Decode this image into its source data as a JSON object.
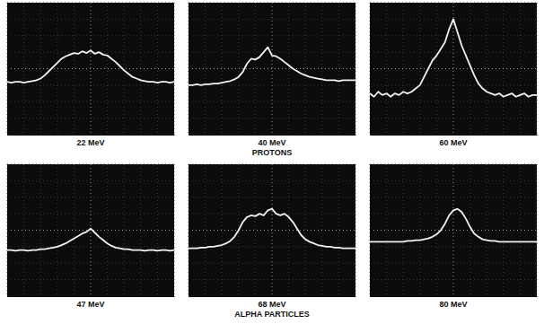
{
  "chart_data": [
    {
      "type": "line",
      "title": "22 MeV",
      "grid": true,
      "tick_labels": false,
      "color": "#f2f2f2",
      "xlim": [
        0,
        10
      ],
      "ylim": [
        0,
        8
      ],
      "xticks": [
        0,
        1,
        2,
        3,
        4,
        5,
        6,
        7,
        8,
        9,
        10
      ],
      "yticks": [
        0,
        1,
        2,
        3,
        4,
        5,
        6,
        7,
        8
      ],
      "x": [
        0,
        0.25,
        0.5,
        0.75,
        1,
        1.25,
        1.5,
        1.75,
        2,
        2.25,
        2.5,
        2.75,
        3,
        3.25,
        3.5,
        3.75,
        4,
        4.25,
        4.5,
        4.75,
        5,
        5.25,
        5.5,
        5.75,
        6,
        6.25,
        6.5,
        6.75,
        7,
        7.25,
        7.5,
        7.75,
        8,
        8.25,
        8.5,
        8.75,
        9,
        9.25,
        9.5,
        9.75,
        10
      ],
      "values": [
        3.2,
        3.15,
        3.2,
        3.2,
        3.15,
        3.2,
        3.25,
        3.3,
        3.4,
        3.6,
        3.85,
        4.1,
        4.35,
        4.6,
        4.75,
        4.85,
        4.95,
        4.9,
        5.05,
        4.95,
        5.1,
        4.9,
        5.0,
        4.85,
        4.8,
        4.6,
        4.4,
        4.15,
        3.9,
        3.7,
        3.5,
        3.4,
        3.3,
        3.25,
        3.2,
        3.2,
        3.15,
        3.2,
        3.2,
        3.15,
        3.2
      ]
    },
    {
      "type": "line",
      "title": "40 MeV",
      "subtitle": "PROTONS",
      "grid": true,
      "tick_labels": false,
      "color": "#f2f2f2",
      "xlim": [
        0,
        10
      ],
      "ylim": [
        0,
        8
      ],
      "xticks": [
        0,
        1,
        2,
        3,
        4,
        5,
        6,
        7,
        8,
        9,
        10
      ],
      "yticks": [
        0,
        1,
        2,
        3,
        4,
        5,
        6,
        7,
        8
      ],
      "x": [
        0,
        0.25,
        0.5,
        0.75,
        1,
        1.25,
        1.5,
        1.75,
        2,
        2.25,
        2.5,
        2.75,
        3,
        3.25,
        3.5,
        3.75,
        4,
        4.25,
        4.5,
        4.75,
        5,
        5.25,
        5.5,
        5.75,
        6,
        6.25,
        6.5,
        6.75,
        7,
        7.25,
        7.5,
        7.75,
        8,
        8.25,
        8.5,
        8.75,
        9,
        9.25,
        9.5,
        9.75,
        10
      ],
      "values": [
        3.0,
        3.0,
        3.05,
        3.0,
        3.05,
        3.05,
        3.1,
        3.1,
        3.15,
        3.2,
        3.25,
        3.35,
        3.5,
        3.8,
        4.3,
        4.6,
        4.55,
        4.7,
        5.0,
        5.3,
        4.8,
        4.75,
        4.6,
        4.4,
        4.2,
        4.0,
        3.85,
        3.7,
        3.6,
        3.5,
        3.45,
        3.4,
        3.35,
        3.3,
        3.3,
        3.3,
        3.25,
        3.3,
        3.3,
        3.3,
        3.3
      ]
    },
    {
      "type": "line",
      "title": "60 MeV",
      "grid": true,
      "tick_labels": false,
      "color": "#f2f2f2",
      "xlim": [
        0,
        10
      ],
      "ylim": [
        0,
        8
      ],
      "xticks": [
        0,
        1,
        2,
        3,
        4,
        5,
        6,
        7,
        8,
        9,
        10
      ],
      "yticks": [
        0,
        1,
        2,
        3,
        4,
        5,
        6,
        7,
        8
      ],
      "x": [
        0,
        0.25,
        0.5,
        0.75,
        1,
        1.25,
        1.5,
        1.75,
        2,
        2.25,
        2.5,
        2.75,
        3,
        3.25,
        3.5,
        3.75,
        4,
        4.25,
        4.5,
        4.75,
        5,
        5.25,
        5.5,
        5.75,
        6,
        6.25,
        6.5,
        6.75,
        7,
        7.25,
        7.5,
        7.75,
        8,
        8.25,
        8.5,
        8.75,
        9,
        9.25,
        9.5,
        9.75,
        10
      ],
      "values": [
        2.5,
        2.3,
        2.6,
        2.4,
        2.5,
        2.3,
        2.5,
        2.4,
        2.6,
        2.5,
        2.6,
        2.8,
        3.0,
        3.5,
        4.0,
        4.5,
        4.8,
        5.2,
        5.6,
        6.4,
        7.0,
        6.2,
        5.4,
        4.8,
        4.2,
        3.6,
        3.1,
        2.8,
        2.6,
        2.5,
        2.4,
        2.5,
        2.3,
        2.4,
        2.5,
        2.3,
        2.4,
        2.5,
        2.3,
        2.4,
        2.4
      ]
    },
    {
      "type": "line",
      "title": "47 MeV",
      "grid": true,
      "tick_labels": false,
      "color": "#f2f2f2",
      "xlim": [
        0,
        10
      ],
      "ylim": [
        0,
        8
      ],
      "xticks": [
        0,
        1,
        2,
        3,
        4,
        5,
        6,
        7,
        8,
        9,
        10
      ],
      "yticks": [
        0,
        1,
        2,
        3,
        4,
        5,
        6,
        7,
        8
      ],
      "x": [
        0,
        0.25,
        0.5,
        0.75,
        1,
        1.25,
        1.5,
        1.75,
        2,
        2.25,
        2.5,
        2.75,
        3,
        3.25,
        3.5,
        3.75,
        4,
        4.25,
        4.5,
        4.75,
        5,
        5.25,
        5.5,
        5.75,
        6,
        6.25,
        6.5,
        6.75,
        7,
        7.25,
        7.5,
        7.75,
        8,
        8.25,
        8.5,
        8.75,
        9,
        9.25,
        9.5,
        9.75,
        10
      ],
      "values": [
        2.8,
        2.8,
        2.75,
        2.8,
        2.8,
        2.75,
        2.8,
        2.8,
        2.85,
        2.85,
        2.9,
        2.95,
        3.0,
        3.1,
        3.2,
        3.35,
        3.5,
        3.65,
        3.8,
        3.9,
        4.1,
        3.85,
        3.6,
        3.4,
        3.2,
        3.05,
        2.95,
        2.9,
        2.85,
        2.85,
        2.8,
        2.8,
        2.8,
        2.75,
        2.8,
        2.8,
        2.75,
        2.8,
        2.8,
        2.75,
        2.8
      ]
    },
    {
      "type": "line",
      "title": "68 MeV",
      "subtitle": "ALPHA PARTICLES",
      "grid": true,
      "tick_labels": false,
      "color": "#f2f2f2",
      "xlim": [
        0,
        10
      ],
      "ylim": [
        0,
        8
      ],
      "xticks": [
        0,
        1,
        2,
        3,
        4,
        5,
        6,
        7,
        8,
        9,
        10
      ],
      "yticks": [
        0,
        1,
        2,
        3,
        4,
        5,
        6,
        7,
        8
      ],
      "x": [
        0,
        0.25,
        0.5,
        0.75,
        1,
        1.25,
        1.5,
        1.75,
        2,
        2.25,
        2.5,
        2.75,
        3,
        3.25,
        3.5,
        3.75,
        4,
        4.25,
        4.5,
        4.75,
        5,
        5.25,
        5.5,
        5.75,
        6,
        6.25,
        6.5,
        6.75,
        7,
        7.25,
        7.5,
        7.75,
        8,
        8.25,
        8.5,
        8.75,
        9,
        9.25,
        9.5,
        9.75,
        10
      ],
      "values": [
        2.9,
        2.9,
        2.9,
        2.95,
        2.95,
        3.0,
        3.0,
        3.05,
        3.1,
        3.2,
        3.35,
        3.6,
        4.0,
        4.5,
        4.8,
        4.9,
        4.85,
        5.0,
        4.9,
        5.2,
        5.3,
        5.0,
        4.9,
        5.0,
        4.8,
        4.5,
        4.1,
        3.7,
        3.45,
        3.3,
        3.2,
        3.1,
        3.05,
        3.0,
        3.0,
        2.95,
        2.95,
        2.9,
        2.9,
        2.9,
        2.9
      ]
    },
    {
      "type": "line",
      "title": "80 MeV",
      "grid": true,
      "tick_labels": false,
      "color": "#f2f2f2",
      "xlim": [
        0,
        10
      ],
      "ylim": [
        0,
        8
      ],
      "xticks": [
        0,
        1,
        2,
        3,
        4,
        5,
        6,
        7,
        8,
        9,
        10
      ],
      "yticks": [
        0,
        1,
        2,
        3,
        4,
        5,
        6,
        7,
        8
      ],
      "x": [
        0,
        0.25,
        0.5,
        0.75,
        1,
        1.25,
        1.5,
        1.75,
        2,
        2.25,
        2.5,
        2.75,
        3,
        3.25,
        3.5,
        3.75,
        4,
        4.25,
        4.5,
        4.75,
        5,
        5.25,
        5.5,
        5.75,
        6,
        6.25,
        6.5,
        6.75,
        7,
        7.25,
        7.5,
        7.75,
        8,
        8.25,
        8.5,
        8.75,
        9,
        9.25,
        9.5,
        9.75,
        10
      ],
      "values": [
        3.3,
        3.3,
        3.3,
        3.3,
        3.3,
        3.3,
        3.3,
        3.3,
        3.3,
        3.35,
        3.35,
        3.4,
        3.4,
        3.45,
        3.5,
        3.6,
        3.75,
        4.0,
        4.4,
        4.9,
        5.2,
        5.3,
        5.1,
        4.7,
        4.2,
        3.8,
        3.6,
        3.45,
        3.4,
        3.35,
        3.35,
        3.3,
        3.3,
        3.3,
        3.3,
        3.3,
        3.3,
        3.3,
        3.3,
        3.3,
        3.3
      ]
    }
  ]
}
